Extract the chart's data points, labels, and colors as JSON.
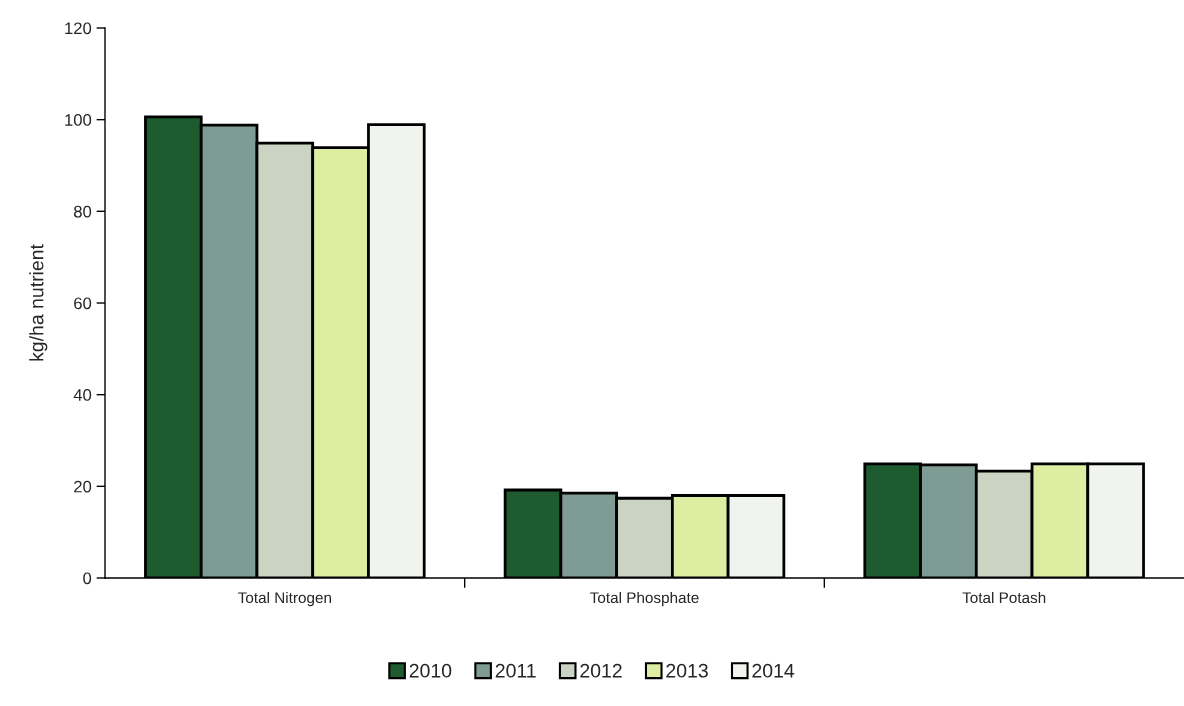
{
  "chart_data": {
    "type": "bar",
    "ylabel": "kg/ha nutrient",
    "categories": [
      "Total Nitrogen",
      "Total Phosphate",
      "Total Potash"
    ],
    "series": [
      {
        "name": "2010",
        "color": "#1e5b2e",
        "values": [
          100.6,
          19.2,
          24.9
        ]
      },
      {
        "name": "2011",
        "color": "#7f9c94",
        "values": [
          98.8,
          18.5,
          24.7
        ]
      },
      {
        "name": "2012",
        "color": "#cbd3c3",
        "values": [
          94.9,
          17.4,
          23.3
        ]
      },
      {
        "name": "2013",
        "color": "#ddeea3",
        "values": [
          93.9,
          18.0,
          24.9
        ]
      },
      {
        "name": "2014",
        "color": "#f1f3ee",
        "values": [
          98.9,
          18.0,
          24.9
        ]
      }
    ],
    "ylim": [
      0,
      120
    ],
    "yticks": [
      0,
      20,
      40,
      60,
      80,
      100,
      120
    ],
    "grid": false,
    "legend": "bottom"
  }
}
